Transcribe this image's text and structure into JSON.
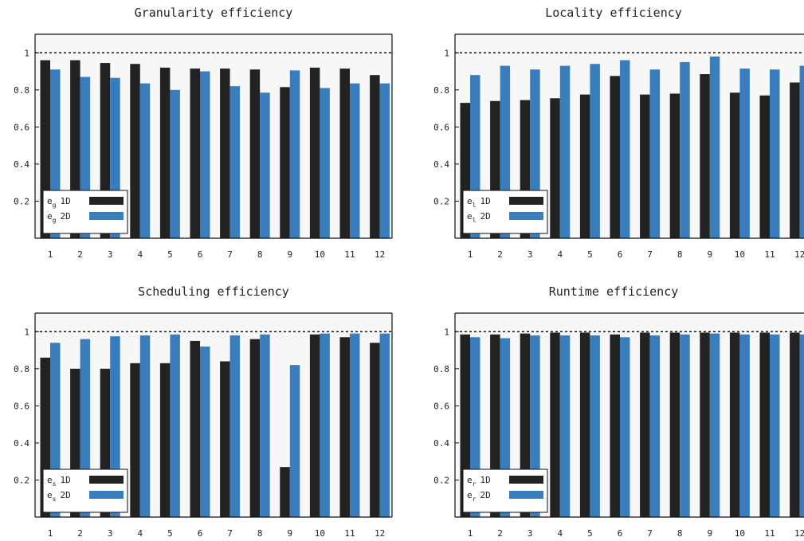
{
  "chart_data": [
    {
      "type": "bar",
      "title": "Granularity efficiency",
      "categories": [
        "1",
        "2",
        "3",
        "4",
        "5",
        "6",
        "7",
        "8",
        "9",
        "10",
        "11",
        "12"
      ],
      "ylim": [
        0,
        1.1
      ],
      "yticks": [
        "0.2",
        "0.4",
        "0.6",
        "0.8",
        "1"
      ],
      "reference_line": 1,
      "legend_position": "bottom-left",
      "series": [
        {
          "name": "e_g 1D",
          "legend_base": "e",
          "legend_sub": "g",
          "legend_suffix": "1D",
          "color": "#222222",
          "values": [
            0.96,
            0.96,
            0.945,
            0.94,
            0.92,
            0.915,
            0.915,
            0.91,
            0.815,
            0.92,
            0.915,
            0.88
          ]
        },
        {
          "name": "e_g 2D",
          "legend_base": "e",
          "legend_sub": "g",
          "legend_suffix": "2D",
          "color": "#3a7dbd",
          "values": [
            0.91,
            0.87,
            0.865,
            0.835,
            0.8,
            0.9,
            0.82,
            0.785,
            0.905,
            0.81,
            0.835,
            0.835
          ]
        }
      ]
    },
    {
      "type": "bar",
      "title": "Locality efficiency",
      "categories": [
        "1",
        "2",
        "3",
        "4",
        "5",
        "6",
        "7",
        "8",
        "9",
        "10",
        "11",
        "12"
      ],
      "ylim": [
        0,
        1.1
      ],
      "yticks": [
        "0.2",
        "0.4",
        "0.6",
        "0.8",
        "1"
      ],
      "reference_line": 1,
      "legend_position": "bottom-left",
      "series": [
        {
          "name": "e_l 1D",
          "legend_base": "e",
          "legend_sub": "l",
          "legend_suffix": "1D",
          "color": "#222222",
          "values": [
            0.73,
            0.74,
            0.745,
            0.755,
            0.775,
            0.875,
            0.775,
            0.78,
            0.885,
            0.785,
            0.77,
            0.84
          ]
        },
        {
          "name": "e_l 2D",
          "legend_base": "e",
          "legend_sub": "l",
          "legend_suffix": "2D",
          "color": "#3a7dbd",
          "values": [
            0.88,
            0.93,
            0.91,
            0.93,
            0.94,
            0.96,
            0.91,
            0.95,
            0.98,
            0.915,
            0.91,
            0.93
          ]
        }
      ]
    },
    {
      "type": "bar",
      "title": "Scheduling efficiency",
      "categories": [
        "1",
        "2",
        "3",
        "4",
        "5",
        "6",
        "7",
        "8",
        "9",
        "10",
        "11",
        "12"
      ],
      "ylim": [
        0,
        1.1
      ],
      "yticks": [
        "0.2",
        "0.4",
        "0.6",
        "0.8",
        "1"
      ],
      "reference_line": 1,
      "legend_position": "bottom-left",
      "series": [
        {
          "name": "e_s 1D",
          "legend_base": "e",
          "legend_sub": "s",
          "legend_suffix": "1D",
          "color": "#222222",
          "values": [
            0.86,
            0.8,
            0.8,
            0.83,
            0.83,
            0.95,
            0.84,
            0.96,
            0.27,
            0.985,
            0.97,
            0.94
          ]
        },
        {
          "name": "e_s 2D",
          "legend_base": "e",
          "legend_sub": "s",
          "legend_suffix": "2D",
          "color": "#3a7dbd",
          "values": [
            0.94,
            0.96,
            0.975,
            0.98,
            0.985,
            0.92,
            0.98,
            0.985,
            0.82,
            0.99,
            0.99,
            0.99
          ]
        }
      ]
    },
    {
      "type": "bar",
      "title": "Runtime efficiency",
      "categories": [
        "1",
        "2",
        "3",
        "4",
        "5",
        "6",
        "7",
        "8",
        "9",
        "10",
        "11",
        "12"
      ],
      "ylim": [
        0,
        1.1
      ],
      "yticks": [
        "0.2",
        "0.4",
        "0.6",
        "0.8",
        "1"
      ],
      "reference_line": 1,
      "legend_position": "bottom-left",
      "series": [
        {
          "name": "e_r 1D",
          "legend_base": "e",
          "legend_sub": "r",
          "legend_suffix": "1D",
          "color": "#222222",
          "values": [
            0.985,
            0.985,
            0.99,
            0.995,
            0.995,
            0.985,
            0.995,
            0.995,
            0.995,
            0.995,
            0.995,
            0.995
          ]
        },
        {
          "name": "e_r 2D",
          "legend_base": "e",
          "legend_sub": "r",
          "legend_suffix": "2D",
          "color": "#3a7dbd",
          "values": [
            0.97,
            0.965,
            0.98,
            0.98,
            0.98,
            0.97,
            0.98,
            0.985,
            0.99,
            0.985,
            0.985,
            0.985
          ]
        }
      ]
    }
  ]
}
